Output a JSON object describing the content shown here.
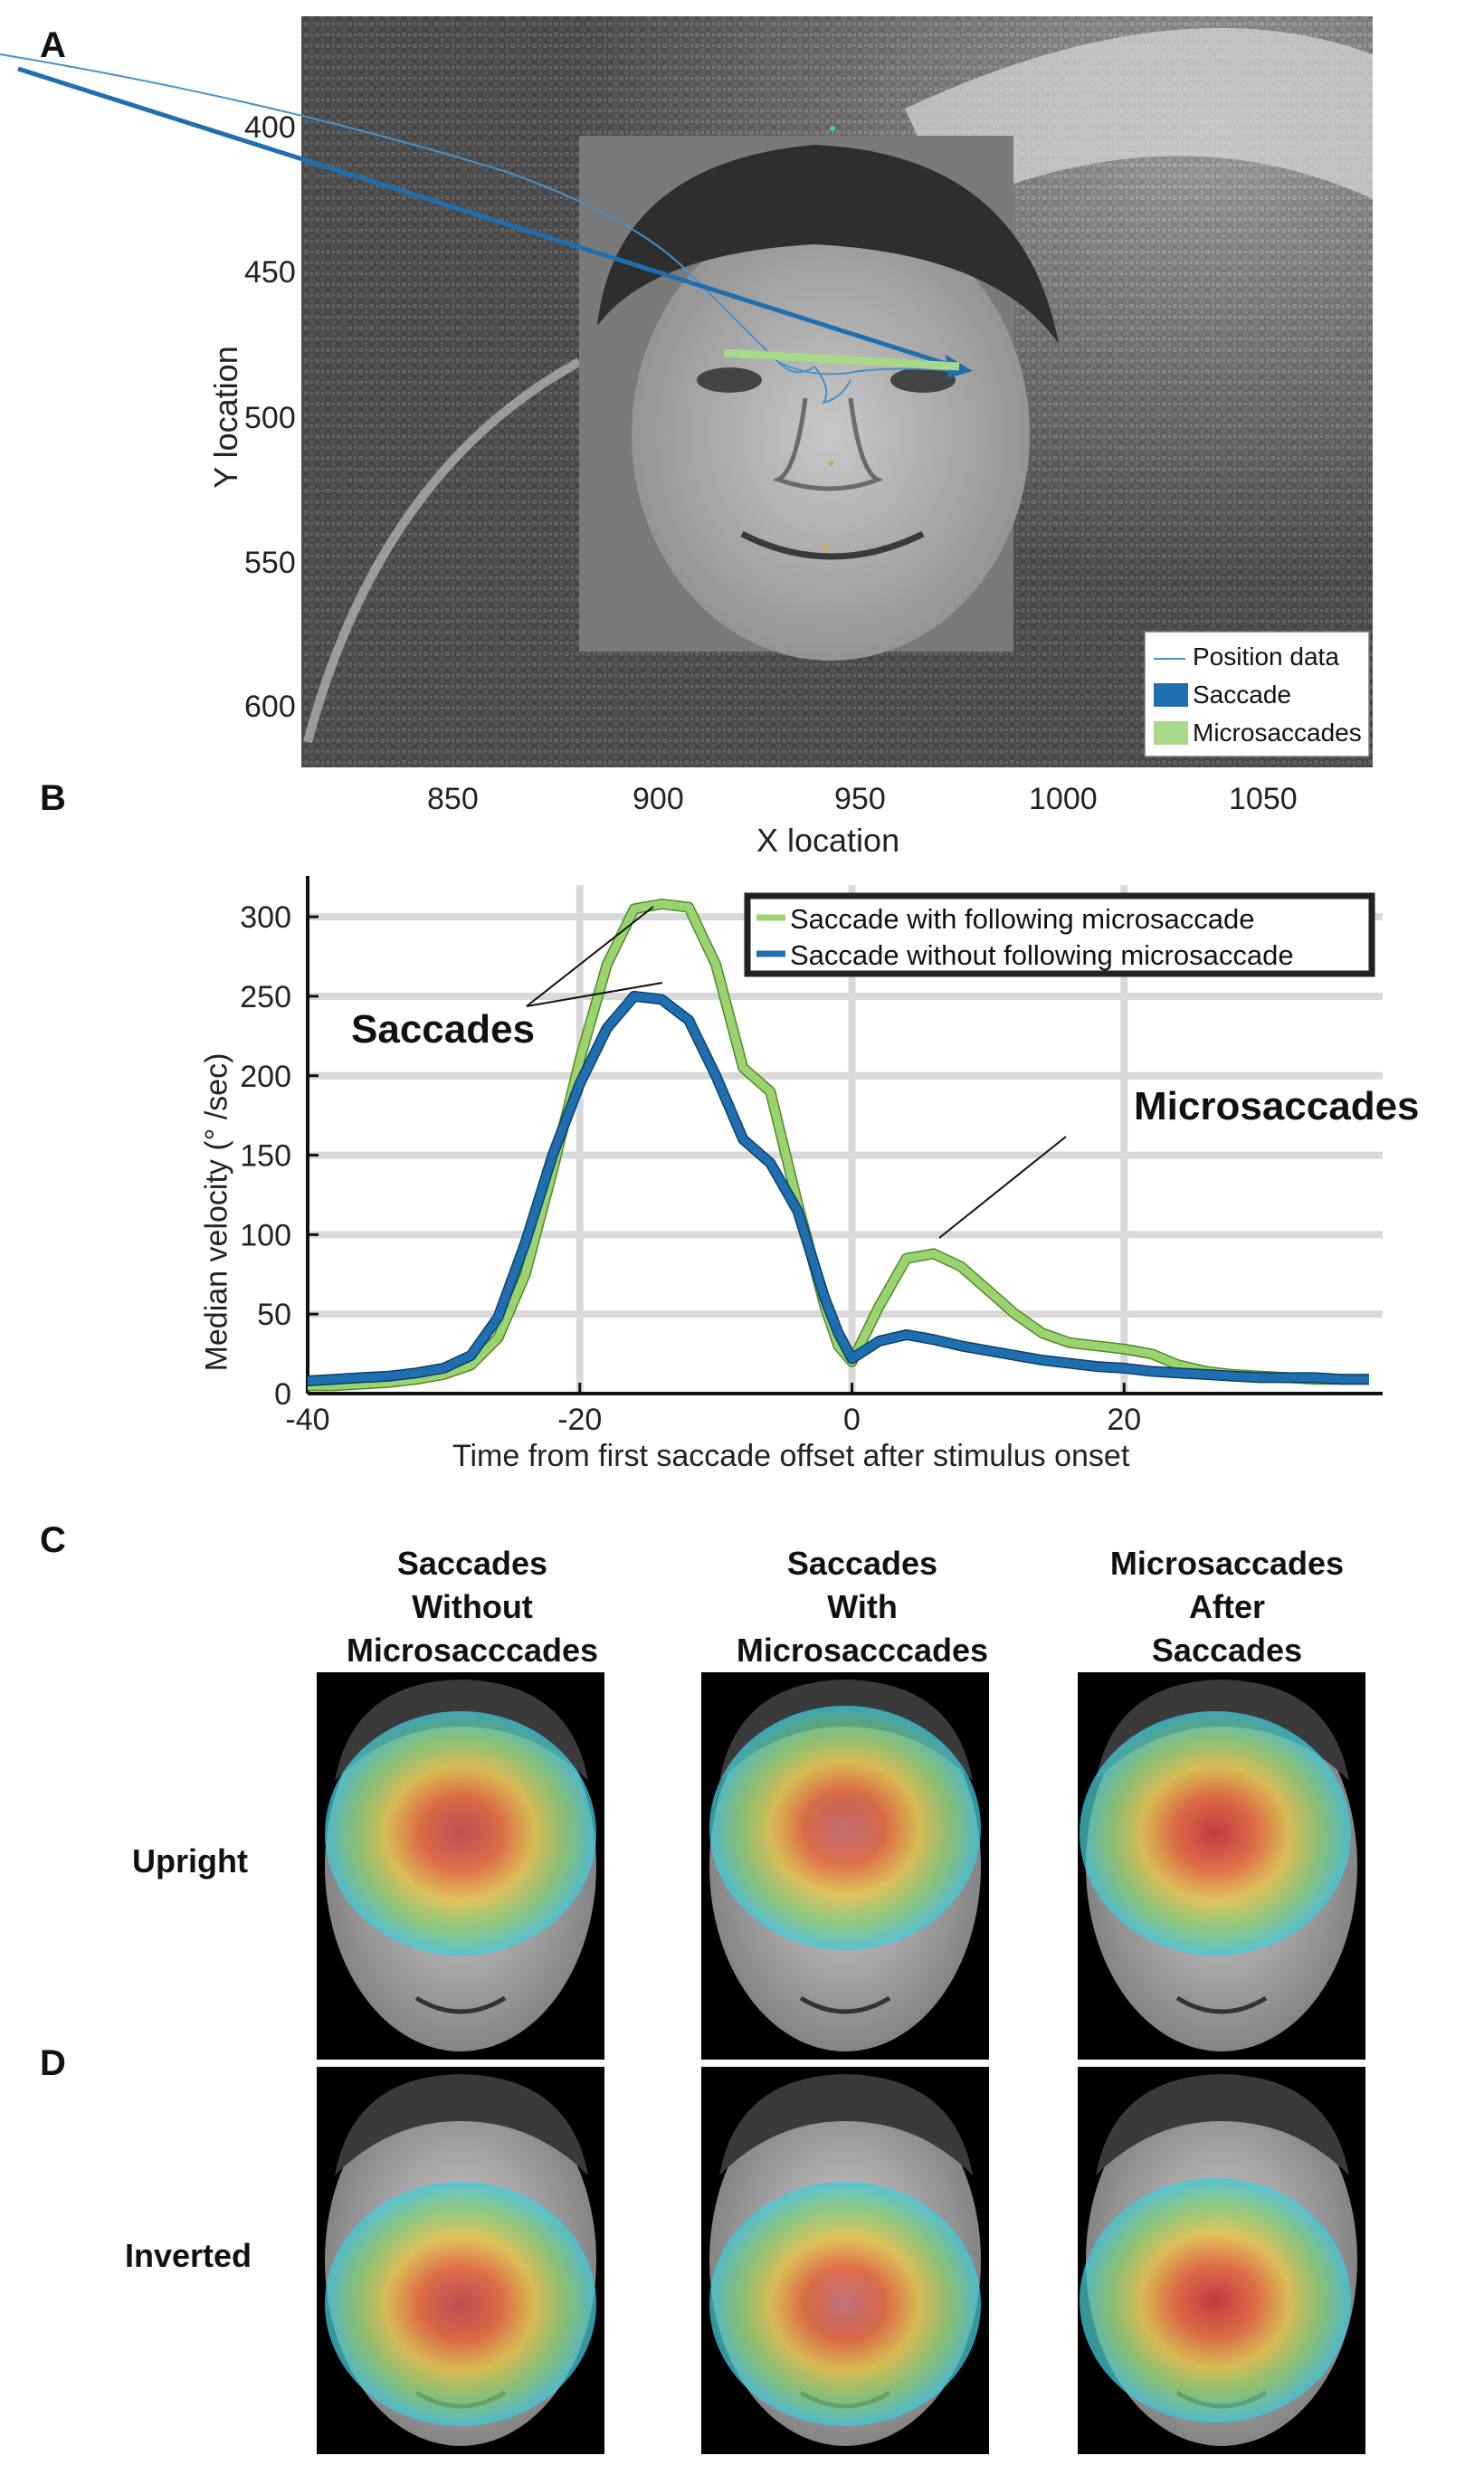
{
  "panel_a": {
    "letter": "A",
    "xlabel": "X location",
    "ylabel": "Y location",
    "x_ticks": [
      "850",
      "900",
      "950",
      "1000",
      "1050"
    ],
    "y_ticks": [
      "400",
      "450",
      "500",
      "550",
      "600"
    ],
    "legend": [
      "Position data",
      "Saccade",
      "Microsaccades"
    ],
    "colors": {
      "position": "#4a90c8",
      "saccade": "#1f6fb0",
      "microsaccade": "#a8d98a"
    }
  },
  "panel_b": {
    "letter": "B",
    "annotations": {
      "saccades": "Saccades",
      "microsaccades": "Microsaccades"
    }
  },
  "chart_data": {
    "type": "line",
    "title": "",
    "xlabel": "Time from first saccade offset after stimulus onset",
    "ylabel": "Median velocity (° /sec)",
    "xlim": [
      -40,
      39
    ],
    "ylim": [
      0,
      320
    ],
    "x_ticks": [
      -40,
      -20,
      0,
      20
    ],
    "y_ticks": [
      0,
      50,
      100,
      150,
      200,
      250,
      300
    ],
    "grid": true,
    "legend_position": "top-right",
    "x": [
      -40,
      -38,
      -36,
      -34,
      -32,
      -30,
      -28,
      -26,
      -24,
      -22,
      -20,
      -18,
      -16,
      -14,
      -12,
      -10,
      -8,
      -6,
      -4,
      -2,
      -1,
      0,
      2,
      4,
      6,
      8,
      10,
      12,
      14,
      16,
      18,
      20,
      22,
      24,
      26,
      28,
      30,
      32,
      34,
      36,
      38
    ],
    "series": [
      {
        "name": "Saccade with following microsaccade",
        "color": "#9bd36f",
        "values": [
          5,
          5,
          6,
          7,
          9,
          12,
          18,
          35,
          75,
          140,
          210,
          270,
          305,
          308,
          306,
          270,
          205,
          190,
          120,
          55,
          30,
          20,
          55,
          85,
          88,
          80,
          65,
          50,
          38,
          32,
          30,
          28,
          25,
          18,
          14,
          12,
          11,
          10,
          9,
          9,
          9
        ]
      },
      {
        "name": "Saccade without following microsaccade",
        "color": "#1f6fb0",
        "values": [
          8,
          9,
          10,
          11,
          13,
          16,
          24,
          48,
          95,
          150,
          195,
          230,
          250,
          248,
          235,
          200,
          160,
          145,
          115,
          60,
          38,
          22,
          33,
          37,
          34,
          30,
          27,
          24,
          21,
          19,
          17,
          16,
          14,
          13,
          12,
          11,
          10,
          10,
          10,
          9,
          9
        ]
      }
    ]
  },
  "panel_c": {
    "letter": "C",
    "columns": [
      [
        "Saccades",
        "Without",
        "Microsacccades"
      ],
      [
        "Saccades",
        "With",
        "Microsacccades"
      ],
      [
        "Microsaccades",
        "After",
        "Saccades"
      ]
    ],
    "row_label": "Upright"
  },
  "panel_d": {
    "letter": "D",
    "row_label": "Inverted"
  }
}
